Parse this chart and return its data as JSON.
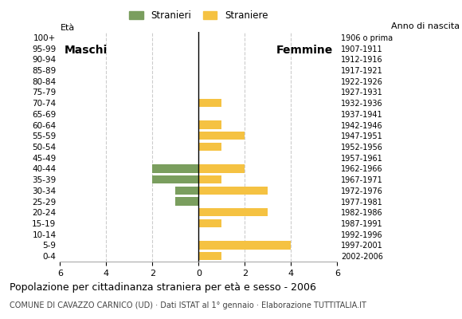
{
  "age_groups": [
    "100+",
    "95-99",
    "90-94",
    "85-89",
    "80-84",
    "75-79",
    "70-74",
    "65-69",
    "60-64",
    "55-59",
    "50-54",
    "45-49",
    "40-44",
    "35-39",
    "30-34",
    "25-29",
    "20-24",
    "15-19",
    "10-14",
    "5-9",
    "0-4"
  ],
  "birth_years": [
    "1906 o prima",
    "1907-1911",
    "1912-1916",
    "1917-1921",
    "1922-1926",
    "1927-1931",
    "1932-1936",
    "1937-1941",
    "1942-1946",
    "1947-1951",
    "1952-1956",
    "1957-1961",
    "1962-1966",
    "1967-1971",
    "1972-1976",
    "1977-1981",
    "1982-1986",
    "1987-1991",
    "1992-1996",
    "1997-2001",
    "2002-2006"
  ],
  "males": [
    0,
    0,
    0,
    0,
    0,
    0,
    0,
    0,
    0,
    0,
    0,
    0,
    2,
    2,
    1,
    1,
    0,
    0,
    0,
    0,
    0
  ],
  "females": [
    0,
    0,
    0,
    0,
    0,
    0,
    1,
    0,
    1,
    2,
    1,
    0,
    2,
    1,
    3,
    0,
    3,
    1,
    0,
    4,
    1
  ],
  "male_color": "#7a9e5e",
  "female_color": "#f5c242",
  "title": "Popolazione per cittadinanza straniera per età e sesso - 2006",
  "subtitle": "COMUNE DI CAVAZZO CARNICO (UD) · Dati ISTAT al 1° gennaio · Elaborazione TUTTITALIA.IT",
  "legend_male": "Stranieri",
  "legend_female": "Straniere",
  "xlim": 6,
  "eta_label": "Età",
  "label_maschi": "Maschi",
  "label_femmine": "Femmine",
  "anno_nascita": "Anno di nascita",
  "background_color": "#ffffff",
  "grid_color": "#cccccc"
}
